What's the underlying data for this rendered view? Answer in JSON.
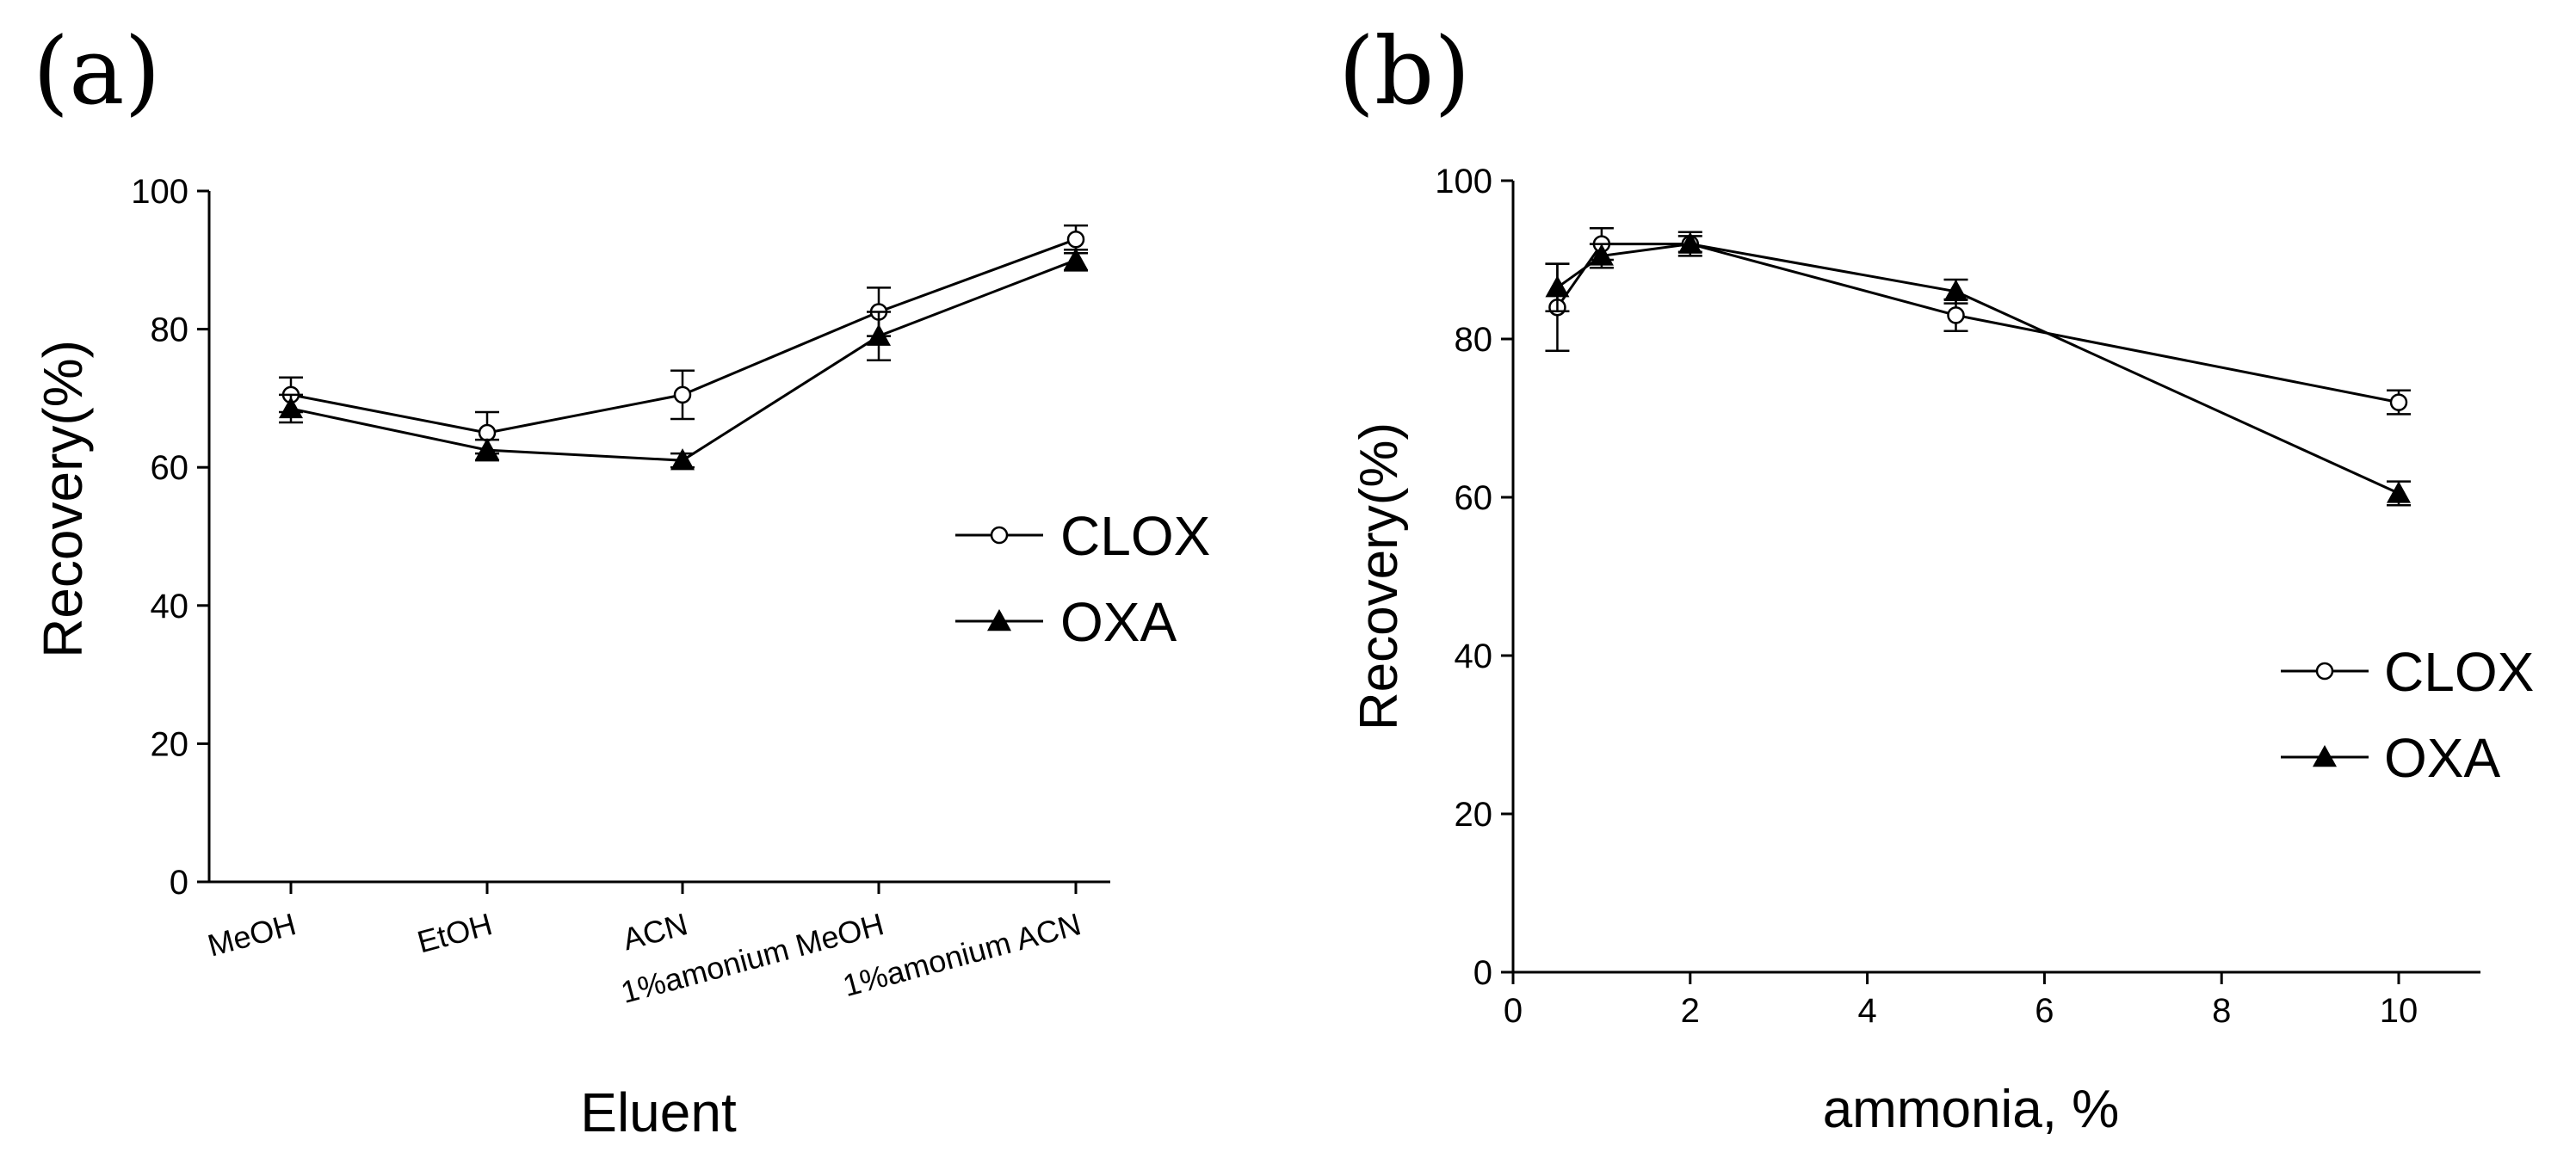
{
  "chart_data": [
    {
      "panel_label": "(a)",
      "type": "line",
      "title": "",
      "xlabel": "Eluent",
      "ylabel": "Recovery(%)",
      "categories": [
        "MeOH",
        "EtOH",
        "ACN",
        "1%amonium MeOH",
        "1%amonium ACN"
      ],
      "ylim": [
        0,
        100
      ],
      "yticks": [
        "0",
        "20",
        "40",
        "60",
        "80",
        "100"
      ],
      "grid": false,
      "legend_position": "right",
      "series": [
        {
          "name": "CLOX",
          "marker": "open-circle",
          "values": [
            70.5,
            65,
            70.5,
            82.5,
            93
          ],
          "errors": [
            2.5,
            3,
            3.5,
            3.5,
            2
          ]
        },
        {
          "name": "OXA",
          "marker": "filled-triangle",
          "values": [
            68.5,
            62.5,
            61,
            79,
            90
          ],
          "errors": [
            2,
            1.5,
            1,
            3.5,
            1.5
          ]
        }
      ]
    },
    {
      "panel_label": "(b)",
      "type": "line",
      "title": "",
      "xlabel": "ammonia, %",
      "ylabel": "Recovery(%)",
      "xlim": [
        0,
        11
      ],
      "xticks": [
        "0",
        "2",
        "4",
        "6",
        "8",
        "10"
      ],
      "ylim": [
        0,
        100
      ],
      "yticks": [
        "0",
        "20",
        "40",
        "60",
        "80",
        "100"
      ],
      "grid": false,
      "legend_position": "right",
      "series": [
        {
          "name": "CLOX",
          "marker": "open-circle",
          "x": [
            0.5,
            1,
            2,
            5,
            10
          ],
          "values": [
            84,
            92,
            92,
            83,
            72
          ],
          "errors": [
            5.5,
            2,
            1.5,
            2,
            1.5
          ]
        },
        {
          "name": "OXA",
          "marker": "filled-triangle",
          "x": [
            0.5,
            1,
            2,
            5,
            10
          ],
          "values": [
            86.5,
            90.5,
            92,
            86,
            60.5
          ],
          "errors": [
            3,
            1.5,
            1,
            1.5,
            1.5
          ]
        }
      ]
    }
  ]
}
